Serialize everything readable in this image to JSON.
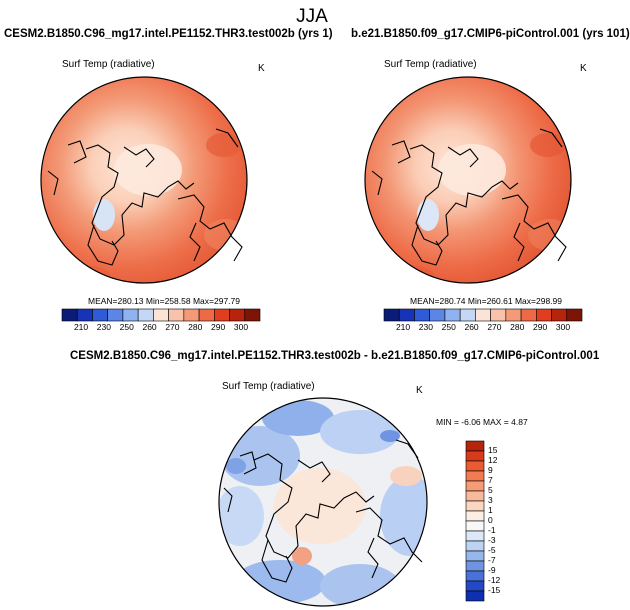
{
  "season_title": "JJA",
  "panels": [
    {
      "case_title": "CESM2.B1850.C96_mg17.intel.PE1152.THR3.test002b (yrs 1)",
      "variable_label": "Surf Temp (radiative)",
      "units": "K",
      "stats": {
        "mean_label": "MEAN=",
        "mean": "280.13",
        "min_label": "Min=",
        "min": "258.58",
        "max_label": "Max=",
        "max": "297.79"
      }
    },
    {
      "case_title": "b.e21.B1850.f09_g17.CMIP6-piControl.001 (yrs 101)",
      "variable_label": "Surf Temp (radiative)",
      "units": "K",
      "stats": {
        "mean_label": "MEAN=",
        "mean": "280.74",
        "min_label": "Min=",
        "min": "260.61",
        "max_label": "Max=",
        "max": "298.99"
      }
    }
  ],
  "abs_colorbar": {
    "labels": [
      "210",
      "230",
      "250",
      "260",
      "270",
      "280",
      "290",
      "300"
    ],
    "colors": [
      "#0b1c78",
      "#1733b8",
      "#2f5bd6",
      "#5b86e6",
      "#8fb2f0",
      "#c4d8f6",
      "#fbe3d6",
      "#f8c3aa",
      "#f49a78",
      "#ee6a46",
      "#e03e1e",
      "#b7240e",
      "#7e1406"
    ]
  },
  "diff_panel": {
    "title": "CESM2.B1850.C96_mg17.intel.PE1152.THR3.test002b - b.e21.B1850.f09_g17.CMIP6-piControl.001",
    "variable_label": "Surf Temp (radiative)",
    "units": "K",
    "stats": {
      "min_label": "MIN =",
      "min": "-6.06",
      "max_label": "MAX =",
      "max": "4.87"
    }
  },
  "diff_colorbar": {
    "labels": [
      "15",
      "12",
      "9",
      "7",
      "5",
      "3",
      "1",
      "0",
      "-1",
      "-3",
      "-5",
      "-7",
      "-9",
      "-12",
      "-15"
    ],
    "colors": [
      "#b7240e",
      "#d93a1c",
      "#ea5a33",
      "#f27b52",
      "#f59b76",
      "#f8ba9d",
      "#fbd6c2",
      "#fdeee4",
      "#f8f8f8",
      "#dce8f8",
      "#bcd3f3",
      "#96b6ec",
      "#6f95e2",
      "#4872d8",
      "#2449c6",
      "#0e2fb0"
    ]
  }
}
